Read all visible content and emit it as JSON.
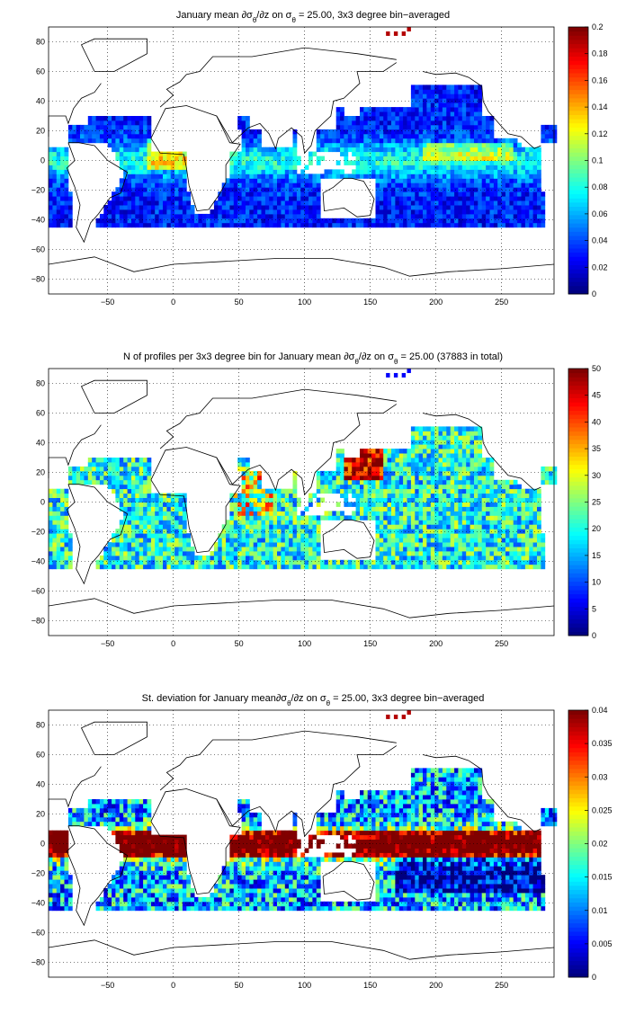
{
  "chart_data": [
    {
      "type": "heatmap",
      "title": "January mean ∂σ",
      "title_parts": {
        "a": "January mean ∂σ",
        "sub1": "θ",
        "b": "/∂z on σ",
        "sub2": "θ",
        "c": " = 25.00, 3x3 degree bin−averaged"
      },
      "xlim": [
        -95,
        290
      ],
      "ylim": [
        -90,
        90
      ],
      "xticks": [
        -50,
        0,
        50,
        100,
        150,
        200,
        250
      ],
      "yticks": [
        80,
        60,
        40,
        20,
        0,
        -20,
        -40,
        -60,
        -80
      ],
      "colorbar": {
        "min": 0,
        "max": 0.2,
        "ticks": [
          "0",
          "0.02",
          "0.04",
          "0.06",
          "0.08",
          "0.1",
          "0.12",
          "0.14",
          "0.16",
          "0.18",
          "0.2"
        ]
      },
      "grid": true,
      "colormap": "jet",
      "pattern": "stratification"
    },
    {
      "type": "heatmap",
      "title": "N of profiles per 3x3 degree bin for January mean",
      "title_parts": {
        "a": "N of profiles per 3x3 degree bin for January mean ∂σ",
        "sub1": "θ",
        "b": "/∂z on σ",
        "sub2": "θ",
        "c": " = 25.00 (37883 in total)"
      },
      "xlim": [
        -95,
        290
      ],
      "ylim": [
        -90,
        90
      ],
      "xticks": [
        -50,
        0,
        50,
        100,
        150,
        200,
        250
      ],
      "yticks": [
        80,
        60,
        40,
        20,
        0,
        -20,
        -40,
        -60,
        -80
      ],
      "colorbar": {
        "min": 0,
        "max": 50,
        "ticks": [
          "0",
          "5",
          "10",
          "15",
          "20",
          "25",
          "30",
          "35",
          "40",
          "45",
          "50"
        ]
      },
      "grid": true,
      "colormap": "jet",
      "pattern": "counts"
    },
    {
      "type": "heatmap",
      "title": "St. deviation for January mean",
      "title_parts": {
        "a": "St. deviation for January mean∂σ",
        "sub1": "θ",
        "b": "/∂z on σ",
        "sub2": "θ",
        "c": " = 25.00, 3x3 degree bin−averaged"
      },
      "xlim": [
        -95,
        290
      ],
      "ylim": [
        -90,
        90
      ],
      "xticks": [
        -50,
        0,
        50,
        100,
        150,
        200,
        250
      ],
      "yticks": [
        80,
        60,
        40,
        20,
        0,
        -20,
        -40,
        -60,
        -80
      ],
      "colorbar": {
        "min": 0,
        "max": 0.04,
        "ticks": [
          "0",
          "0.005",
          "0.01",
          "0.015",
          "0.02",
          "0.025",
          "0.03",
          "0.035",
          "0.04"
        ]
      },
      "grid": true,
      "colormap": "jet",
      "pattern": "stdev"
    }
  ]
}
